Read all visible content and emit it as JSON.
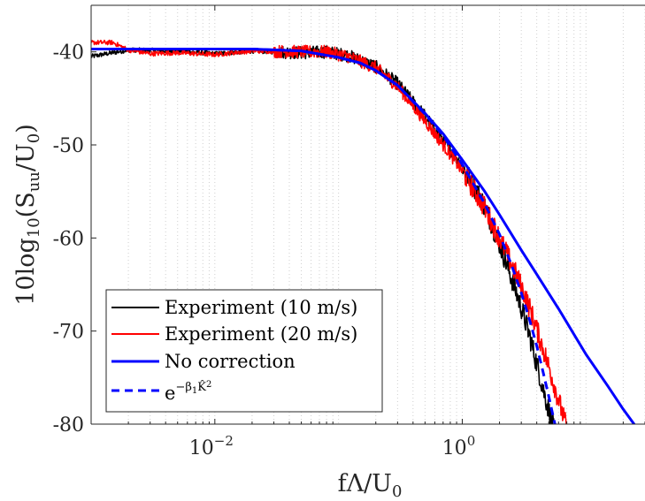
{
  "chart_data": {
    "type": "line",
    "title": "",
    "xlabel": {
      "main": "fΛ/U",
      "sub": "0"
    },
    "ylabel": {
      "lead": "10log",
      "sub1": "10",
      "open": "(S",
      "sub2": "uu",
      "mid": "/U",
      "sub3": "0",
      "close": ")"
    },
    "x_scale": "log",
    "xlim": [
      0.001,
      30
    ],
    "ylim": [
      -80,
      -35
    ],
    "x_ticks": [
      {
        "value": 0.01,
        "base": "10",
        "exp": "−2"
      },
      {
        "value": 1,
        "base": "10",
        "exp": "0"
      }
    ],
    "y_ticks": [
      {
        "value": -40,
        "label": "-40"
      },
      {
        "value": -50,
        "label": "-50"
      },
      {
        "value": -60,
        "label": "-60"
      },
      {
        "value": -70,
        "label": "-70"
      },
      {
        "value": -80,
        "label": "-80"
      }
    ],
    "grid": {
      "x_minor": true,
      "y": false
    },
    "legend": {
      "placement": "lower-left"
    },
    "series": [
      {
        "name": "Experiment (10 m/s)",
        "color": "#000000",
        "style": "solid",
        "noisy": true,
        "x": [
          0.001,
          0.002,
          0.005,
          0.01,
          0.02,
          0.05,
          0.08,
          0.12,
          0.2,
          0.3,
          0.5,
          0.8,
          1.0,
          1.5,
          2.0,
          2.5,
          3.0,
          3.5,
          4.0,
          4.5,
          5.0,
          5.5
        ],
        "y": [
          -40.5,
          -39.8,
          -39.9,
          -40.2,
          -39.9,
          -40.1,
          -40.0,
          -40.4,
          -41.6,
          -43.4,
          -46.9,
          -50.5,
          -52.2,
          -56.4,
          -60.6,
          -64.3,
          -67.5,
          -70.5,
          -73.5,
          -76.2,
          -78.5,
          -80.5
        ]
      },
      {
        "name": "Experiment (20 m/s)",
        "color": "#ff0000",
        "style": "solid",
        "noisy": true,
        "x": [
          0.001,
          0.0015,
          0.002,
          0.003,
          0.005,
          0.01,
          0.02,
          0.05,
          0.08,
          0.12,
          0.2,
          0.3,
          0.5,
          0.8,
          1.0,
          1.5,
          2.0,
          2.5,
          3.0,
          3.5,
          4.0,
          5.0,
          6.0,
          7.0
        ],
        "y": [
          -39.0,
          -39.0,
          -39.8,
          -40.2,
          -40.1,
          -40.3,
          -39.9,
          -40.0,
          -40.0,
          -40.5,
          -41.7,
          -43.7,
          -47.4,
          -51.0,
          -52.8,
          -56.6,
          -60.0,
          -62.8,
          -65.2,
          -67.5,
          -69.8,
          -73.8,
          -77.4,
          -80.5
        ]
      },
      {
        "name": "No correction",
        "color": "#0000ff",
        "style": "solid",
        "x": [
          0.001,
          0.01,
          0.02,
          0.05,
          0.1,
          0.15,
          0.2,
          0.3,
          0.5,
          0.7,
          1.0,
          1.5,
          2.0,
          3.0,
          4.0,
          6.0,
          10.0,
          15.0,
          20.0,
          30.0
        ],
        "y": [
          -39.7,
          -39.7,
          -39.7,
          -39.9,
          -40.6,
          -41.2,
          -42.0,
          -43.6,
          -46.6,
          -48.8,
          -51.6,
          -54.9,
          -57.5,
          -61.3,
          -63.9,
          -67.6,
          -72.5,
          -75.9,
          -78.4,
          -81.6
        ]
      },
      {
        "name": "e^{-β1 K̂^2}",
        "color": "#0000ff",
        "style": "dashed",
        "x": [
          0.001,
          0.01,
          0.02,
          0.05,
          0.1,
          0.15,
          0.2,
          0.3,
          0.5,
          0.7,
          1.0,
          1.5,
          2.0,
          2.5,
          3.0,
          3.5,
          4.0,
          4.5,
          5.0,
          5.5,
          6.0
        ],
        "y": [
          -39.7,
          -39.7,
          -39.7,
          -39.9,
          -40.6,
          -41.2,
          -42.0,
          -43.6,
          -46.7,
          -49.0,
          -52.1,
          -56.2,
          -59.6,
          -62.9,
          -65.9,
          -68.8,
          -71.6,
          -74.4,
          -77.0,
          -79.5,
          -81.6
        ]
      }
    ],
    "legend_entries": [
      {
        "label": "Experiment (10 m/s)",
        "color": "#000000",
        "style": "solid",
        "width": 2
      },
      {
        "label": "Experiment (20 m/s)",
        "color": "#ff0000",
        "style": "solid",
        "width": 2
      },
      {
        "label": "No correction",
        "color": "#0000ff",
        "style": "solid",
        "width": 3
      },
      {
        "label_base": "e",
        "label_exp": "−β",
        "label_exp_sub": "1",
        "label_exp_hat": "K̂",
        "label_exp_pow": "2",
        "color": "#0000ff",
        "style": "dashed",
        "width": 3
      }
    ]
  }
}
